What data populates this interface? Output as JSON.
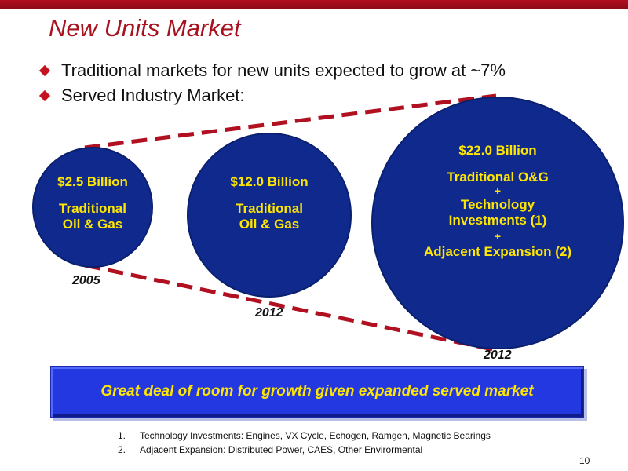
{
  "slide": {
    "title": "New Units Market",
    "bullets": [
      "Traditional markets for new units expected to grow at ~7%",
      "Served Industry Market:"
    ],
    "circles": [
      {
        "amount": "$2.5 Billion",
        "lines": [
          "Traditional",
          "Oil & Gas"
        ],
        "year": "2005"
      },
      {
        "amount": "$12.0 Billion",
        "lines": [
          "Traditional",
          "Oil & Gas"
        ],
        "year": "2012"
      },
      {
        "amount": "$22.0 Billion",
        "lines": [
          "Traditional O&G",
          "+",
          "Technology",
          "Investments (1)",
          "+",
          "Adjacent Expansion (2)"
        ],
        "year": "2012"
      }
    ],
    "banner": "Great deal of room for growth given expanded served market",
    "footnotes": [
      {
        "num": "1.",
        "text": "Technology Investments: Engines, VX Cycle, Echogen, Ramgen, Magnetic Bearings"
      },
      {
        "num": "2.",
        "text": "Adjacent Expansion: Distributed Power, CAES, Other Envirormental"
      }
    ],
    "page_number": "10"
  },
  "colors": {
    "accent_red": "#a8121f",
    "circle_blue": "#0f2a8c",
    "text_yellow": "#ffe600",
    "banner_blue": "#2338e0"
  }
}
